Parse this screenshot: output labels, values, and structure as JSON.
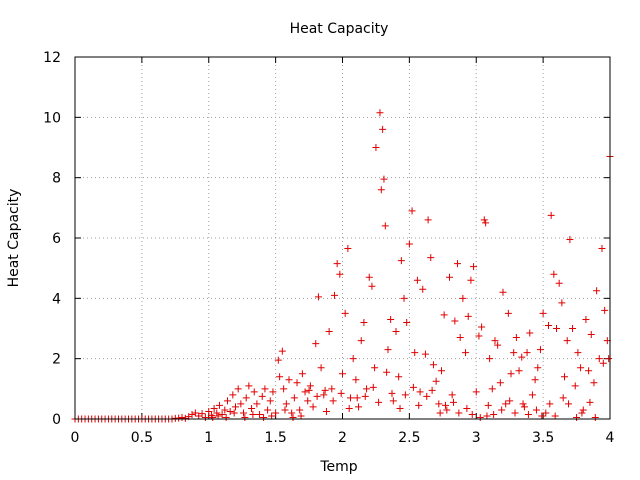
{
  "chart_data": {
    "type": "scatter",
    "title": "Heat Capacity",
    "xlabel": "Temp",
    "ylabel": "Heat Capacity",
    "xlim": [
      0,
      4
    ],
    "ylim": [
      0,
      12
    ],
    "xticks": [
      0,
      0.5,
      1,
      1.5,
      2,
      2.5,
      3,
      3.5,
      4
    ],
    "xtick_labels": [
      "0",
      "0.5",
      "1",
      "1.5",
      "2",
      "2.5",
      "3",
      "3.5",
      "4"
    ],
    "yticks": [
      0,
      2,
      4,
      6,
      8,
      10,
      12
    ],
    "ytick_labels": [
      "0",
      "2",
      "4",
      "6",
      "8",
      "10",
      "12"
    ],
    "grid": true,
    "legend": "none",
    "marker": "+",
    "color": "#e00000",
    "series": [
      {
        "points": [
          [
            0.0,
            0
          ],
          [
            0.025,
            0
          ],
          [
            0.05,
            0
          ],
          [
            0.075,
            0
          ],
          [
            0.1,
            0
          ],
          [
            0.125,
            0
          ],
          [
            0.15,
            0
          ],
          [
            0.175,
            0
          ],
          [
            0.2,
            0
          ],
          [
            0.225,
            0
          ],
          [
            0.25,
            0
          ],
          [
            0.275,
            0
          ],
          [
            0.3,
            0
          ],
          [
            0.325,
            0
          ],
          [
            0.35,
            0
          ],
          [
            0.375,
            0
          ],
          [
            0.4,
            0
          ],
          [
            0.425,
            0
          ],
          [
            0.45,
            0
          ],
          [
            0.475,
            0
          ],
          [
            0.5,
            0
          ],
          [
            0.525,
            0
          ],
          [
            0.55,
            0
          ],
          [
            0.575,
            0
          ],
          [
            0.6,
            0
          ],
          [
            0.625,
            0
          ],
          [
            0.65,
            0
          ],
          [
            0.675,
            0
          ],
          [
            0.7,
            0
          ],
          [
            0.725,
            0
          ],
          [
            0.75,
            0.02
          ],
          [
            0.775,
            0.03
          ],
          [
            0.8,
            0.05
          ],
          [
            0.825,
            0.02
          ],
          [
            0.85,
            0.08
          ],
          [
            0.875,
            0.15
          ],
          [
            0.9,
            0.2
          ],
          [
            0.925,
            0.1
          ],
          [
            0.95,
            0.18
          ],
          [
            0.975,
            0.05
          ],
          [
            1.0,
            0.25
          ],
          [
            1.02,
            0.12
          ],
          [
            1.04,
            0.35
          ],
          [
            1.06,
            0.2
          ],
          [
            1.08,
            0.45
          ],
          [
            1.1,
            0.15
          ],
          [
            1.12,
            0.3
          ],
          [
            1.14,
            0.6
          ],
          [
            1.16,
            0.25
          ],
          [
            1.18,
            0.8
          ],
          [
            1.2,
            0.4
          ],
          [
            1.22,
            1.0
          ],
          [
            1.24,
            0.5
          ],
          [
            1.26,
            0.2
          ],
          [
            1.28,
            0.7
          ],
          [
            1.3,
            1.1
          ],
          [
            1.32,
            0.35
          ],
          [
            1.34,
            0.9
          ],
          [
            1.36,
            0.5
          ],
          [
            1.38,
            0.15
          ],
          [
            1.4,
            0.75
          ],
          [
            1.42,
            1.0
          ],
          [
            1.44,
            0.3
          ],
          [
            1.46,
            0.6
          ],
          [
            1.48,
            0.9
          ],
          [
            1.5,
            0.2
          ],
          [
            1.52,
            1.95
          ],
          [
            1.53,
            1.4
          ],
          [
            1.55,
            2.25
          ],
          [
            1.56,
            1.0
          ],
          [
            1.58,
            0.5
          ],
          [
            1.6,
            1.3
          ],
          [
            1.62,
            0.2
          ],
          [
            1.64,
            0.7
          ],
          [
            1.66,
            1.2
          ],
          [
            1.68,
            0.3
          ],
          [
            1.7,
            1.5
          ],
          [
            1.72,
            0.9
          ],
          [
            1.74,
            0.6
          ],
          [
            1.76,
            1.1
          ],
          [
            1.78,
            0.4
          ],
          [
            1.8,
            2.5
          ],
          [
            1.82,
            4.05
          ],
          [
            1.84,
            1.7
          ],
          [
            1.86,
            0.8
          ],
          [
            1.88,
            0.25
          ],
          [
            1.9,
            2.9
          ],
          [
            1.92,
            1.0
          ],
          [
            1.94,
            4.1
          ],
          [
            1.96,
            5.15
          ],
          [
            1.98,
            4.8
          ],
          [
            2.0,
            1.5
          ],
          [
            2.02,
            3.5
          ],
          [
            2.04,
            5.65
          ],
          [
            2.06,
            0.7
          ],
          [
            2.08,
            2.0
          ],
          [
            2.1,
            1.3
          ],
          [
            2.12,
            0.4
          ],
          [
            2.14,
            2.6
          ],
          [
            2.16,
            3.2
          ],
          [
            2.18,
            1.0
          ],
          [
            2.2,
            4.7
          ],
          [
            2.22,
            4.4
          ],
          [
            2.24,
            1.7
          ],
          [
            2.25,
            9.0
          ],
          [
            2.28,
            10.15
          ],
          [
            2.29,
            7.6
          ],
          [
            2.3,
            9.6
          ],
          [
            2.31,
            7.95
          ],
          [
            2.32,
            6.4
          ],
          [
            2.34,
            2.3
          ],
          [
            2.36,
            3.3
          ],
          [
            2.38,
            0.6
          ],
          [
            2.4,
            2.9
          ],
          [
            2.42,
            1.4
          ],
          [
            2.44,
            5.25
          ],
          [
            2.46,
            4.0
          ],
          [
            2.48,
            3.2
          ],
          [
            2.5,
            5.8
          ],
          [
            2.52,
            6.9
          ],
          [
            2.54,
            2.2
          ],
          [
            2.56,
            4.6
          ],
          [
            2.58,
            0.9
          ],
          [
            2.6,
            4.3
          ],
          [
            2.62,
            2.15
          ],
          [
            2.64,
            6.6
          ],
          [
            2.66,
            5.35
          ],
          [
            2.68,
            1.8
          ],
          [
            2.7,
            1.25
          ],
          [
            2.72,
            0.5
          ],
          [
            2.74,
            1.6
          ],
          [
            2.76,
            3.45
          ],
          [
            2.78,
            0.3
          ],
          [
            2.8,
            4.7
          ],
          [
            2.82,
            0.8
          ],
          [
            2.84,
            3.25
          ],
          [
            2.86,
            5.15
          ],
          [
            2.88,
            2.7
          ],
          [
            2.9,
            4.0
          ],
          [
            2.92,
            2.2
          ],
          [
            2.94,
            3.4
          ],
          [
            2.96,
            4.6
          ],
          [
            2.98,
            5.05
          ],
          [
            3.0,
            0.9
          ],
          [
            3.02,
            2.75
          ],
          [
            3.04,
            3.05
          ],
          [
            3.06,
            6.6
          ],
          [
            3.07,
            6.5
          ],
          [
            3.08,
            0.1
          ],
          [
            3.1,
            2.0
          ],
          [
            3.12,
            1.0
          ],
          [
            3.14,
            2.6
          ],
          [
            3.16,
            2.45
          ],
          [
            3.18,
            1.2
          ],
          [
            3.2,
            4.2
          ],
          [
            3.22,
            0.5
          ],
          [
            3.24,
            3.5
          ],
          [
            3.26,
            1.5
          ],
          [
            3.28,
            2.2
          ],
          [
            3.3,
            2.7
          ],
          [
            3.32,
            1.6
          ],
          [
            3.34,
            2.05
          ],
          [
            3.36,
            0.4
          ],
          [
            3.38,
            2.2
          ],
          [
            3.4,
            2.85
          ],
          [
            3.42,
            0.8
          ],
          [
            3.44,
            1.3
          ],
          [
            3.46,
            1.7
          ],
          [
            3.48,
            2.3
          ],
          [
            3.5,
            3.5
          ],
          [
            3.52,
            0.2
          ],
          [
            3.54,
            3.1
          ],
          [
            3.56,
            6.75
          ],
          [
            3.58,
            4.8
          ],
          [
            3.6,
            3.0
          ],
          [
            3.62,
            4.5
          ],
          [
            3.64,
            3.85
          ],
          [
            3.66,
            1.4
          ],
          [
            3.68,
            2.6
          ],
          [
            3.7,
            5.95
          ],
          [
            3.72,
            3.0
          ],
          [
            3.74,
            1.1
          ],
          [
            3.76,
            2.2
          ],
          [
            3.78,
            1.7
          ],
          [
            3.8,
            0.3
          ],
          [
            3.82,
            3.3
          ],
          [
            3.84,
            1.6
          ],
          [
            3.86,
            2.8
          ],
          [
            3.88,
            1.2
          ],
          [
            3.9,
            4.25
          ],
          [
            3.92,
            2.0
          ],
          [
            3.94,
            5.65
          ],
          [
            3.96,
            3.6
          ],
          [
            3.98,
            2.6
          ],
          [
            4.0,
            8.7
          ],
          [
            1.03,
            0.05
          ],
          [
            1.07,
            0.1
          ],
          [
            1.13,
            0.05
          ],
          [
            1.19,
            0.2
          ],
          [
            1.27,
            0.05
          ],
          [
            1.33,
            0.15
          ],
          [
            1.41,
            0.05
          ],
          [
            1.47,
            0.1
          ],
          [
            1.57,
            0.3
          ],
          [
            1.63,
            0.05
          ],
          [
            1.69,
            0.1
          ],
          [
            1.75,
            0.95
          ],
          [
            1.81,
            0.75
          ],
          [
            1.87,
            0.95
          ],
          [
            1.93,
            0.6
          ],
          [
            1.99,
            0.85
          ],
          [
            2.05,
            0.35
          ],
          [
            2.11,
            0.7
          ],
          [
            2.17,
            0.75
          ],
          [
            2.23,
            1.05
          ],
          [
            2.27,
            0.55
          ],
          [
            2.33,
            1.55
          ],
          [
            2.37,
            0.85
          ],
          [
            2.43,
            0.35
          ],
          [
            2.47,
            0.8
          ],
          [
            2.53,
            1.05
          ],
          [
            2.57,
            0.45
          ],
          [
            2.63,
            0.75
          ],
          [
            2.67,
            0.95
          ],
          [
            2.73,
            0.2
          ],
          [
            2.77,
            0.45
          ],
          [
            2.83,
            0.55
          ],
          [
            2.87,
            0.2
          ],
          [
            2.93,
            0.35
          ],
          [
            2.97,
            0.15
          ],
          [
            3.03,
            0.05
          ],
          [
            3.09,
            0.45
          ],
          [
            3.13,
            0.15
          ],
          [
            3.19,
            0.3
          ],
          [
            3.25,
            0.6
          ],
          [
            3.29,
            0.2
          ],
          [
            3.35,
            0.5
          ],
          [
            3.39,
            0.15
          ],
          [
            3.45,
            0.3
          ],
          [
            3.49,
            0.1
          ],
          [
            3.55,
            0.5
          ],
          [
            3.59,
            0.1
          ],
          [
            3.65,
            0.7
          ],
          [
            3.69,
            0.5
          ],
          [
            3.75,
            0.05
          ],
          [
            3.79,
            0.2
          ],
          [
            3.85,
            0.55
          ],
          [
            3.89,
            0.05
          ],
          [
            3.95,
            1.85
          ],
          [
            3.99,
            2.0
          ]
        ]
      }
    ]
  }
}
